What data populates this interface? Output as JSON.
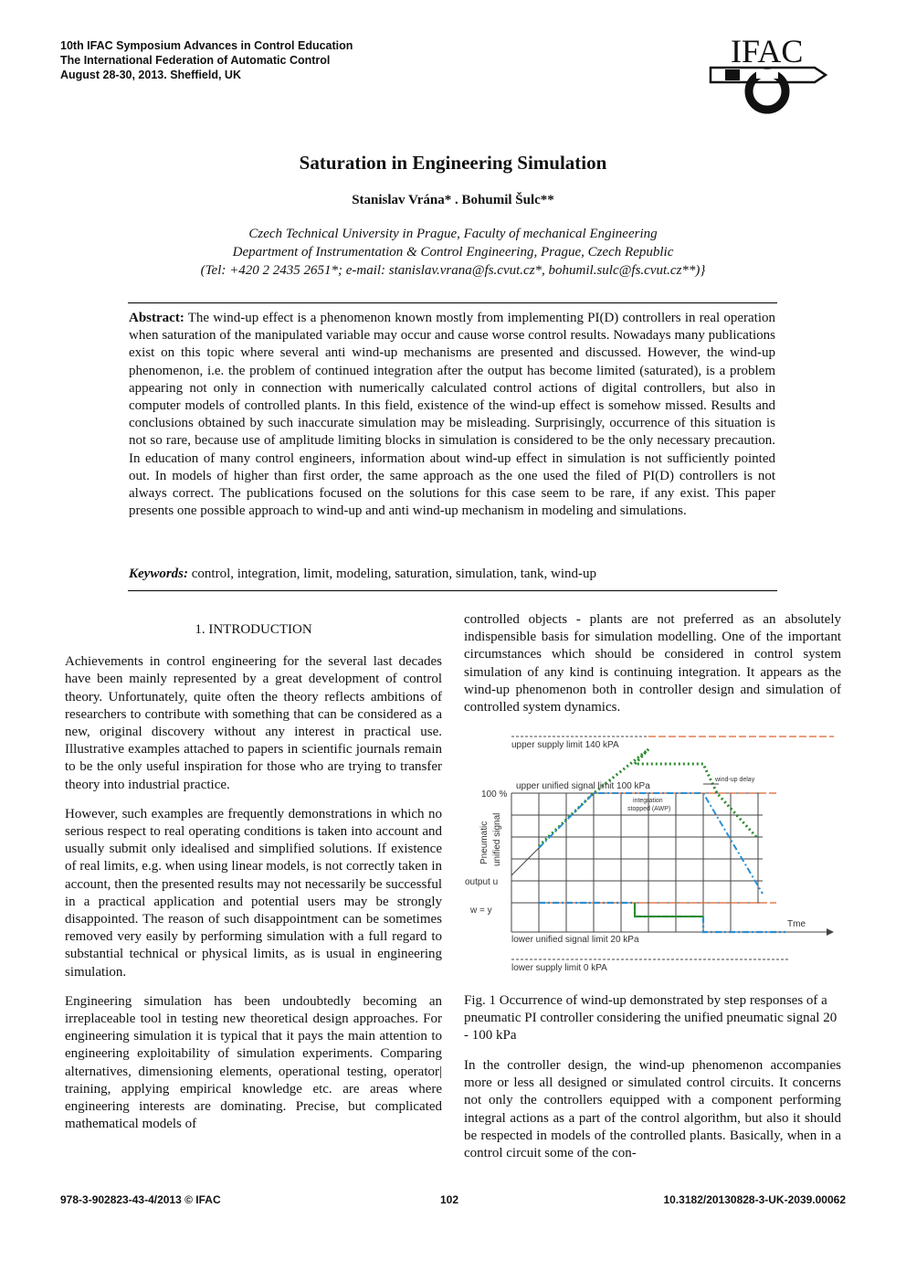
{
  "header": {
    "line1": "10th IFAC Symposium Advances in Control Education",
    "line2": "The International Federation of Automatic Control",
    "line3": "August 28-30, 2013. Sheffield, UK",
    "logo_text": "IFAC"
  },
  "title": "Saturation in Engineering Simulation",
  "authors": "Stanislav Vrána* . Bohumil Šulc**",
  "affiliation": {
    "line1": "Czech Technical University in Prague, Faculty of mechanical Engineering",
    "line2": "Department of Instrumentation & Control Engineering, Prague, Czech Republic",
    "line3": "(Tel: +420 2 2435 2651*; e-mail: stanislav.vrana@fs.cvut.cz*, bohumil.sulc@fs.cvut.cz**)}"
  },
  "abstract": {
    "label": "Abstract:",
    "text": " The wind-up effect is a phenomenon known mostly from implementing PI(D) controllers in real operation when saturation of the manipulated variable may occur and cause worse control results. Nowadays many publications exist on this topic where several anti wind-up mechanisms are presented and discussed. However, the wind-up phenomenon, i.e. the problem of continued integration after the output has become limited (saturated), is a problem appearing not only in connection with numerically calculated control actions of digital controllers, but also in computer models of controlled plants. In this field, existence of the wind-up effect is somehow missed. Results and conclusions obtained by such inaccurate simulation may be misleading. Surprisingly, occurrence of this situation is not so rare, because use of amplitude limiting blocks in simulation is considered to be the only necessary precaution. In education of many control engineers, information about wind-up effect in simulation is not sufficiently pointed out. In models of higher than first order, the same approach as the one used the filed of PI(D) controllers is not always correct. The publications focused on the solutions for this case seem to be rare, if any exist. This paper presents one possible approach to wind-up and anti wind-up mechanism in modeling and simulations."
  },
  "keywords": {
    "label": "Keywords:",
    "text": " control, integration, limit, modeling, saturation, simulation, tank, wind-up"
  },
  "left_column": {
    "section_heading": "1.  INTRODUCTION",
    "p1": "Achievements in control engineering for the several last decades have been mainly represented by a great development of control theory. Unfortunately, quite often the theory reflects ambitions of researchers to contribute with something that can be considered as a new, original discovery without any interest in practical use. Illustrative examples attached to papers in scientific journals remain to be the only useful inspiration for those who are trying to transfer theory into industrial practice.",
    "p2": "However, such examples are frequently demonstrations in which no serious respect to real operating conditions is taken into account and usually submit only idealised and simplified solutions. If existence of real limits, e.g. when using linear models, is not correctly taken in account, then the presented results may not necessarily be successful in a practical application and potential users may be strongly disappointed. The reason of such disappointment can be sometimes removed very easily by performing simulation with a full regard to substantial technical or physical limits, as is usual in engineering simulation.",
    "p3": "Engineering simulation has been undoubtedly becoming an irreplaceable tool in testing new theoretical design approaches. For engineering simulation it is typical that it pays the main attention to engineering exploitability of simulation experiments. Comparing alternatives, dimensioning elements, operational testing, operator| training, applying empirical knowledge etc. are areas where engineering interests are dominating. Precise, but complicated mathematical models of"
  },
  "right_column": {
    "p1": "controlled objects - plants are not preferred as an absolutely indispensible basis for simulation modelling. One of the important circumstances which should be considered in control system simulation of any kind is continuing integration. It appears as the wind-up phenomenon both in controller design and simulation of controlled system dynamics.",
    "caption": "Fig. 1 Occurrence of wind-up demonstrated by step responses of a pneumatic PI controller considering the unified pneumatic signal 20 - 100 kPa",
    "p2": "In the controller design, the wind-up phenomenon accompanies more or less all designed or simulated control circuits. It concerns not only the controllers equipped with a component performing integral actions as a part of the control algorithm, but also it should be respected in models of the controlled plants. Basically, when in a control circuit some of the con-"
  },
  "figure": {
    "upper_supply": "upper supply limit  140 kPA",
    "upper_unified": "upper unified signal  limit  100 kPa",
    "hundred_pct": "100 %",
    "windup_delay": "wind-up delay",
    "integration_1": "integration",
    "integration_2": "stopped (AWP)",
    "ylabel_1": "Pneumatic",
    "ylabel_2": "unified signal",
    "output_u": "output  u",
    "w_eq_y": "w = y",
    "time": "Tme",
    "lower_unified": "lower unified signal limit  20 kPa",
    "lower_supply": "lower supply limit  0 kPA",
    "colors": {
      "windup": "#2e8b2e",
      "awp": "#2a8fd4",
      "limit": "#e0602a",
      "grid": "#444444"
    }
  },
  "footer": {
    "isbn": "978-3-902823-43-4/2013 © IFAC",
    "page": "102",
    "doi": "10.3182/20130828-3-UK-2039.00062"
  }
}
